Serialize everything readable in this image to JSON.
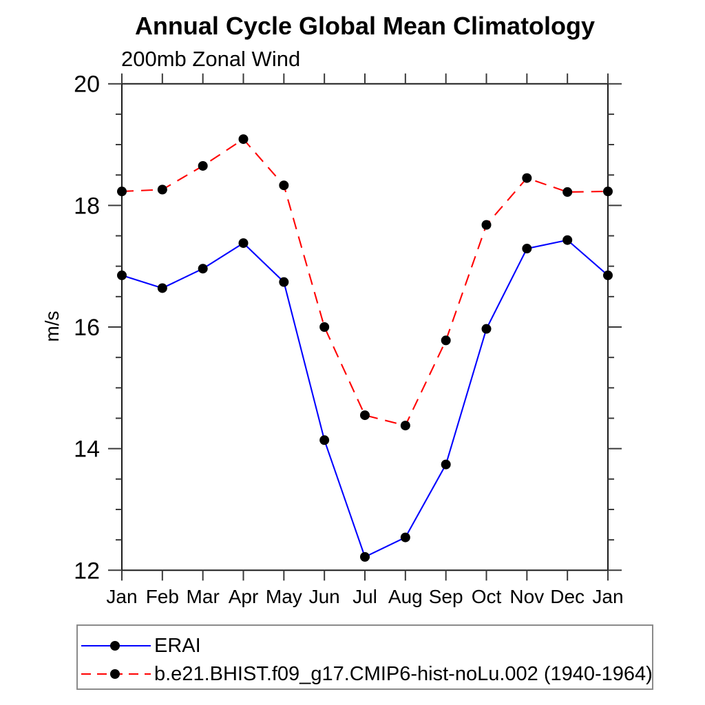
{
  "header": {
    "title": "Annual Cycle Global Mean Climatology",
    "subtitle": "200mb Zonal Wind"
  },
  "chart_data": {
    "type": "line",
    "title": "Annual Cycle Global Mean Climatology",
    "subtitle": "200mb Zonal Wind",
    "xlabel": "",
    "ylabel": "m/s",
    "categories": [
      "Jan",
      "Feb",
      "Mar",
      "Apr",
      "May",
      "Jun",
      "Jul",
      "Aug",
      "Sep",
      "Oct",
      "Nov",
      "Dec",
      "Jan"
    ],
    "ylim": [
      12,
      20
    ],
    "y_major_ticks": [
      12,
      14,
      16,
      18,
      20
    ],
    "y_minor_step": 0.5,
    "grid": false,
    "legend_position": "bottom",
    "series": [
      {
        "name": "ERAI",
        "line_color": "#0000ff",
        "line_style": "solid",
        "marker": "circle",
        "marker_color": "#000000",
        "values": [
          16.85,
          16.64,
          16.96,
          17.38,
          16.74,
          14.14,
          12.22,
          12.54,
          13.74,
          15.97,
          17.29,
          17.43,
          16.85
        ]
      },
      {
        "name": "b.e21.BHIST.f09_g17.CMIP6-hist-noLu.002 (1940-1964)",
        "line_color": "#ff0000",
        "line_style": "dashed",
        "marker": "circle",
        "marker_color": "#000000",
        "values": [
          18.23,
          18.26,
          18.65,
          19.09,
          18.33,
          16.0,
          14.55,
          14.38,
          15.78,
          17.68,
          18.45,
          18.22,
          18.23
        ]
      }
    ]
  },
  "colors": {
    "axis": "#1a1a1a",
    "tick": "#3a3a3a",
    "text": "#000000",
    "legend_border": "#8a8a8a",
    "background": "#ffffff"
  },
  "layout_values": {
    "y_axis_unit_label": "m/s"
  }
}
